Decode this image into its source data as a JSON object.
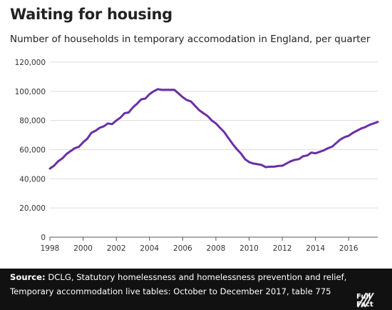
{
  "header": {
    "title": "Waiting for housing",
    "subtitle": "Number of households in temporary accomodation in England, per quarter"
  },
  "footer": {
    "source_label": "Source:",
    "source_line1": "DCLG, Statutory homelessness and homelessness prevention and relief,",
    "source_line2": "Temporary accommodation live tables: October to December 2017, table 775",
    "brand": "Full Fact"
  },
  "colors": {
    "line": "#6b2fa5",
    "grid": "#dddddd",
    "axis": "#555555",
    "footer_bg": "#111111"
  },
  "chart_data": {
    "type": "line",
    "title": "Waiting for housing",
    "subtitle": "Number of households in temporary accomodation in England, per quarter",
    "xlabel": "",
    "ylabel": "",
    "xlim": [
      1998,
      2017.75
    ],
    "ylim": [
      0,
      120000
    ],
    "grid": true,
    "legend": "none",
    "x_ticks": [
      1998,
      2000,
      2002,
      2004,
      2006,
      2008,
      2010,
      2012,
      2014,
      2016
    ],
    "x_tick_labels": [
      "1998",
      "2000",
      "2002",
      "2004",
      "2006",
      "2008",
      "2010",
      "2012",
      "2014",
      "2016"
    ],
    "y_ticks": [
      0,
      20000,
      40000,
      60000,
      80000,
      100000,
      120000
    ],
    "y_tick_labels": [
      "0",
      "20,000",
      "40,000",
      "60,000",
      "80,000",
      "100,000",
      "120,000"
    ],
    "series": [
      {
        "x": [
          1998.0,
          1998.25,
          1998.5,
          1998.75,
          1999.0,
          1999.25,
          1999.5,
          1999.75,
          2000.0,
          2000.25,
          2000.5,
          2000.75,
          2001.0,
          2001.25,
          2001.5,
          2001.75,
          2002.0,
          2002.25,
          2002.5,
          2002.75,
          2003.0,
          2003.25,
          2003.5,
          2003.75,
          2004.0,
          2004.25,
          2004.5,
          2004.75,
          2005.0,
          2005.25,
          2005.5,
          2005.75,
          2006.0,
          2006.25,
          2006.5,
          2006.75,
          2007.0,
          2007.25,
          2007.5,
          2007.75,
          2008.0,
          2008.25,
          2008.5,
          2008.75,
          2009.0,
          2009.25,
          2009.5,
          2009.75,
          2010.0,
          2010.25,
          2010.5,
          2010.75,
          2011.0,
          2011.25,
          2011.5,
          2011.75,
          2012.0,
          2012.25,
          2012.5,
          2012.75,
          2013.0,
          2013.25,
          2013.5,
          2013.75,
          2014.0,
          2014.25,
          2014.5,
          2014.75,
          2015.0,
          2015.25,
          2015.5,
          2015.75,
          2016.0,
          2016.25,
          2016.5,
          2016.75,
          2017.0,
          2017.25,
          2017.5,
          2017.75
        ],
        "values": [
          47000,
          49000,
          52000,
          54000,
          57000,
          59000,
          61000,
          62000,
          65000,
          67500,
          71500,
          73000,
          75000,
          76000,
          78000,
          77500,
          80000,
          82000,
          85000,
          85500,
          89000,
          91500,
          94500,
          95000,
          98000,
          100000,
          101500,
          101000,
          101000,
          101000,
          101000,
          98500,
          96000,
          94000,
          93000,
          90000,
          87000,
          85000,
          83000,
          80000,
          78000,
          75000,
          72000,
          68000,
          64000,
          60500,
          57500,
          53500,
          51500,
          50500,
          50000,
          49500,
          48000,
          48300,
          48300,
          48800,
          49000,
          50500,
          52000,
          53000,
          53500,
          55500,
          56000,
          58000,
          57500,
          58500,
          59500,
          61000,
          62000,
          64500,
          67000,
          68500,
          69500,
          71500,
          73000,
          74500,
          75500,
          77000,
          78000,
          79000
        ]
      }
    ]
  }
}
